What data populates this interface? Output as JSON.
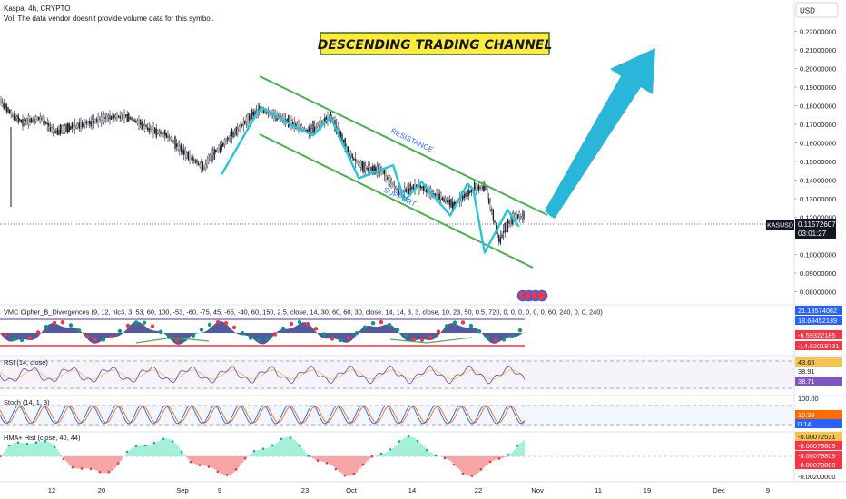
{
  "header": {
    "symbol_line": "Kaspa, 4h, CRYPTO",
    "volume_note": "Vol: The data vendor doesn't provide volume data for this symbol."
  },
  "annotations": {
    "title_banner": "DESCENDING TRADING CHANNEL",
    "resistance_label": "RESISTANCE",
    "support_label": "SUPPORT"
  },
  "price_scale": {
    "currency_button": "USD",
    "ticks": [
      "0.22000000",
      "0.21000000",
      "0.20000000",
      "0.19000000",
      "0.18000000",
      "0.17000000",
      "0.16000000",
      "0.15000000",
      "0.14000000",
      "0.13000000",
      "0.12000000",
      "0.10000000",
      "0.09000000",
      "0.08000000"
    ],
    "last_price_tag": "KASUSD",
    "last_price": "0.11572607",
    "countdown": "03:01:27"
  },
  "indicators": {
    "vmc": {
      "label": "VMC Cipher_B_Divergences (9, 12, hlc3, 3, 53, 60, 100, -53, -60, -75, 45, -65, -40, 60, 150, 2.5, close, 14, 30, 60, 60, 30, close, 14, 14, 3, 3, close, 10, 23, 50, 0.5, 720, 0, 0, 0, 0, 0, 0, 60, 240, 0, 0, 240)",
      "values": [
        "21.13574082",
        "18.68452139",
        "-6.59322185",
        "-14.62018731"
      ],
      "colors": [
        "#2962ff",
        "#2962ff",
        "#f23645",
        "#f23645"
      ]
    },
    "rsi": {
      "label": "RSI (14, close)",
      "values": [
        "43.65",
        "38.91",
        "38.71"
      ],
      "colors": [
        "#f5c451",
        "#ffffff",
        "#7e57c2"
      ]
    },
    "stoch": {
      "label": "Stoch (14, 1, 3)",
      "values": [
        "100.00",
        "10.39",
        "0.14"
      ],
      "colors": [
        "#ffffff",
        "#ff6d00",
        "#2962ff"
      ]
    },
    "hma": {
      "label": "HMA+ Hist (close, 40, 44)",
      "values": [
        "-0.00072531",
        "-0.00079809",
        "-0.00079809",
        "-0.00079809",
        "-0.00200000"
      ],
      "colors": [
        "#f5c451",
        "#f23645",
        "#f23645",
        "#f23645",
        "#ffffff"
      ]
    }
  },
  "time_axis": {
    "ticks": [
      "12",
      "20",
      "Sep",
      "9",
      "23",
      "Oct",
      "14",
      "22",
      "Nov",
      "11",
      "19",
      "Dec",
      "9"
    ]
  },
  "colors": {
    "up": "#089981",
    "channel": "#4caf50",
    "zigzag": "#26c6da",
    "arrow": "#29b6d8",
    "banner_bg": "#ffeb3b",
    "price_tag_bg": "#131722"
  },
  "chart_data": {
    "type": "line",
    "title": "DESCENDING TRADING CHANNEL",
    "xlabel": "",
    "ylabel": "",
    "ylim": [
      0.07,
      0.225
    ],
    "x_ticks": [
      "12",
      "20",
      "Sep",
      "9",
      "23",
      "Oct",
      "14",
      "22",
      "Nov",
      "11",
      "19",
      "Dec",
      "9"
    ],
    "last_price": 0.11572607,
    "series": [
      {
        "name": "",
        "type": "zigzag",
        "points": [
          {
            "x": "Sep 8",
            "y": 0.143
          },
          {
            "x": "Sep 14",
            "y": 0.175
          },
          {
            "x": "Sep 15",
            "y": 0.179
          },
          {
            "x": "Sep 20",
            "y": 0.17
          },
          {
            "x": "Sep 24",
            "y": 0.164
          },
          {
            "x": "Sep 27",
            "y": 0.174
          },
          {
            "x": "Oct 2",
            "y": 0.141
          },
          {
            "x": "Oct 8",
            "y": 0.148
          },
          {
            "x": "Oct 10",
            "y": 0.129
          },
          {
            "x": "Oct 13",
            "y": 0.139
          },
          {
            "x": "Oct 18",
            "y": 0.121
          },
          {
            "x": "Oct 21",
            "y": 0.138
          },
          {
            "x": "Oct 22",
            "y": 0.135
          },
          {
            "x": "Oct 24",
            "y": 0.101
          },
          {
            "x": "Oct 28",
            "y": 0.124
          },
          {
            "x": "Oct 30",
            "y": 0.115
          }
        ]
      },
      {
        "name": "RESISTANCE",
        "type": "channel-line",
        "points": [
          {
            "x": "Sep 15",
            "y": 0.18
          },
          {
            "x": "Oct 30",
            "y": 0.122
          }
        ]
      },
      {
        "name": "SUPPORT",
        "type": "channel-line",
        "points": [
          {
            "x": "Sep 15",
            "y": 0.164
          },
          {
            "x": "Oct 28",
            "y": 0.095
          }
        ]
      },
      {
        "name": "",
        "type": "projection-arrow",
        "points": [
          {
            "x": "Oct 31",
            "y": 0.118
          },
          {
            "x": "Nov 14",
            "y": 0.212
          }
        ]
      }
    ]
  }
}
